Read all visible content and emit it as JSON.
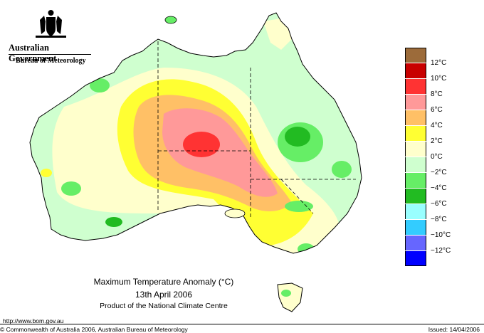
{
  "header": {
    "government": "Australian Government",
    "bureau": "Bureau of Meteorology"
  },
  "caption": {
    "line1": "Maximum Temperature Anomaly (°C)",
    "line2": "13th April 2006",
    "line3": "Product of the National Climate Centre"
  },
  "footer": {
    "url": "http://www.bom.gov.au",
    "copyright": "© Commonwealth of Australia 2006, Australian Bureau of Meteorology",
    "issued": "Issued: 14/04/2006"
  },
  "legend": [
    {
      "label": "",
      "color": "#9c6b3a"
    },
    {
      "label": "12°C",
      "color": "#c80000"
    },
    {
      "label": "10°C",
      "color": "#ff3333"
    },
    {
      "label": "8°C",
      "color": "#ff9999"
    },
    {
      "label": "6°C",
      "color": "#ffc066"
    },
    {
      "label": "4°C",
      "color": "#ffff33"
    },
    {
      "label": "2°C",
      "color": "#ffffcc"
    },
    {
      "label": "0°C",
      "color": "#cfffcf"
    },
    {
      "label": "−2°C",
      "color": "#66ee66"
    },
    {
      "label": "−4°C",
      "color": "#22bb22"
    },
    {
      "label": "−6°C",
      "color": "#99ffff"
    },
    {
      "label": "−8°C",
      "color": "#33ccff"
    },
    {
      "label": "−10°C",
      "color": "#6666ff"
    },
    {
      "label": "−12°C",
      "color": "#0000ff"
    }
  ],
  "colors": {
    "outline": "#000000",
    "border_dash": "#000000"
  }
}
